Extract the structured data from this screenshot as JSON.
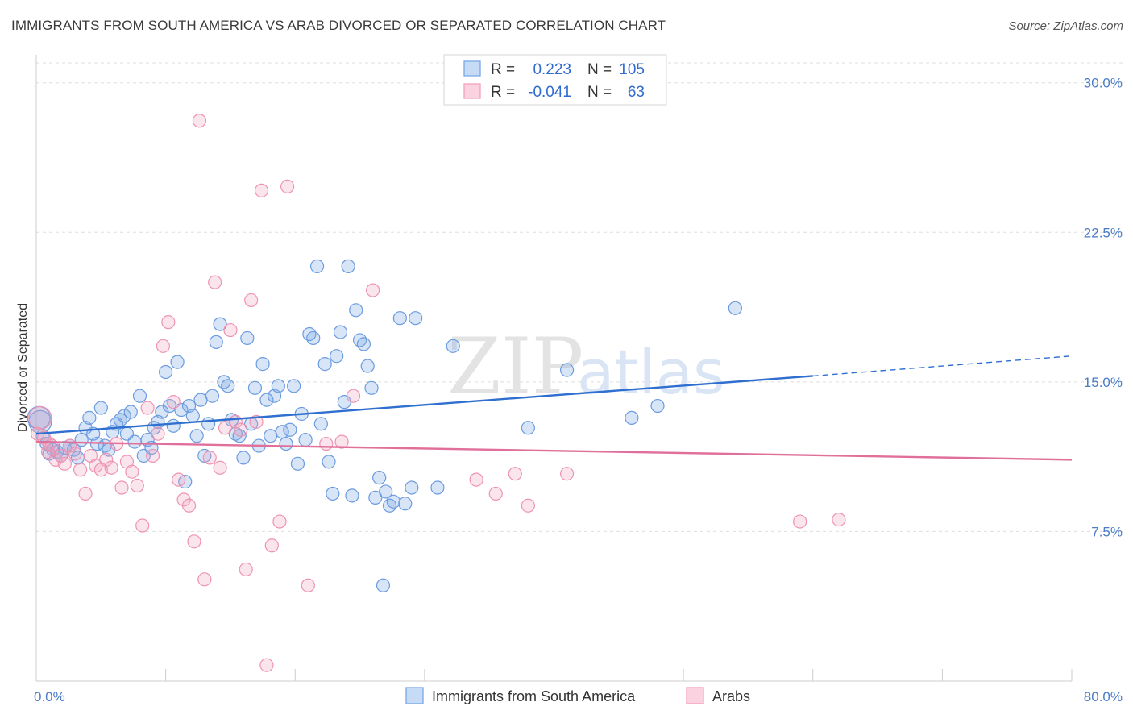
{
  "title": "IMMIGRANTS FROM SOUTH AMERICA VS ARAB DIVORCED OR SEPARATED CORRELATION CHART",
  "source": "Source: ZipAtlas.com",
  "watermark": {
    "zip": "ZIP",
    "atlas": "atlas"
  },
  "colors": {
    "blue": "#7aa8e6",
    "blue_line": "#2f6fd0",
    "pink": "#f2a0bc",
    "pink_line": "#e0709a",
    "tick": "#4a7cc7"
  },
  "legend": {
    "rows": [
      {
        "r_label": "R =",
        "r_value": "0.223",
        "n_label": "N =",
        "n_value": "105"
      },
      {
        "r_label": "R =",
        "r_value": "-0.041",
        "n_label": "N =",
        "n_value": "63"
      }
    ]
  },
  "chart_data": {
    "type": "scatter",
    "title": "IMMIGRANTS FROM SOUTH AMERICA VS ARAB DIVORCED OR SEPARATED CORRELATION CHART",
    "xlabel": "",
    "ylabel": "Divorced or Separated",
    "xlim": [
      0,
      80
    ],
    "ylim": [
      0,
      31
    ],
    "x_tick_labels": [
      "0.0%",
      "80.0%"
    ],
    "y_ticks": [
      7.5,
      15.0,
      22.5,
      30.0
    ],
    "y_tick_labels": [
      "7.5%",
      "15.0%",
      "22.5%",
      "30.0%"
    ],
    "grid": true,
    "legend_position": "top-center",
    "series": [
      {
        "name": "Immigrants from South America",
        "color": "#7aa8e6",
        "trend": {
          "x": [
            0,
            60
          ],
          "y": [
            12.4,
            15.3
          ],
          "dashed_to": [
            80,
            16.3
          ]
        },
        "points": [
          [
            0.2,
            13.2
          ],
          [
            0.5,
            12.3
          ],
          [
            0.8,
            11.9
          ],
          [
            1.0,
            11.4
          ],
          [
            1.3,
            11.6
          ],
          [
            1.6,
            11.5
          ],
          [
            1.9,
            11.3
          ],
          [
            2.2,
            11.7
          ],
          [
            2.6,
            11.8
          ],
          [
            2.9,
            11.6
          ],
          [
            3.2,
            11.2
          ],
          [
            3.5,
            12.1
          ],
          [
            3.8,
            12.7
          ],
          [
            4.1,
            13.2
          ],
          [
            4.4,
            12.4
          ],
          [
            4.7,
            11.9
          ],
          [
            5.0,
            13.7
          ],
          [
            5.3,
            11.8
          ],
          [
            5.6,
            11.6
          ],
          [
            5.9,
            12.5
          ],
          [
            6.2,
            12.9
          ],
          [
            6.5,
            13.1
          ],
          [
            6.8,
            13.3
          ],
          [
            7.0,
            12.4
          ],
          [
            7.3,
            13.5
          ],
          [
            7.6,
            12.0
          ],
          [
            8.0,
            14.3
          ],
          [
            8.3,
            11.3
          ],
          [
            8.6,
            12.1
          ],
          [
            8.9,
            11.7
          ],
          [
            9.1,
            12.7
          ],
          [
            9.4,
            13.0
          ],
          [
            9.7,
            13.5
          ],
          [
            10.0,
            15.5
          ],
          [
            10.3,
            13.8
          ],
          [
            10.6,
            12.8
          ],
          [
            10.9,
            16.0
          ],
          [
            11.2,
            13.6
          ],
          [
            11.5,
            10.0
          ],
          [
            11.8,
            13.8
          ],
          [
            12.1,
            13.3
          ],
          [
            12.4,
            12.3
          ],
          [
            12.7,
            14.1
          ],
          [
            13.0,
            11.3
          ],
          [
            13.3,
            12.9
          ],
          [
            13.6,
            14.3
          ],
          [
            13.9,
            17.0
          ],
          [
            14.2,
            17.9
          ],
          [
            14.5,
            15.0
          ],
          [
            14.8,
            14.8
          ],
          [
            15.1,
            13.1
          ],
          [
            15.4,
            12.4
          ],
          [
            15.7,
            12.3
          ],
          [
            16.0,
            11.2
          ],
          [
            16.3,
            17.2
          ],
          [
            16.6,
            12.9
          ],
          [
            16.9,
            14.7
          ],
          [
            17.2,
            11.8
          ],
          [
            17.5,
            15.9
          ],
          [
            17.8,
            14.1
          ],
          [
            18.1,
            12.3
          ],
          [
            18.4,
            14.3
          ],
          [
            18.7,
            14.8
          ],
          [
            19.0,
            12.5
          ],
          [
            19.3,
            11.9
          ],
          [
            19.6,
            12.6
          ],
          [
            19.9,
            14.8
          ],
          [
            20.2,
            10.9
          ],
          [
            20.5,
            13.4
          ],
          [
            20.8,
            12.1
          ],
          [
            21.1,
            17.4
          ],
          [
            21.4,
            17.2
          ],
          [
            21.7,
            20.8
          ],
          [
            22.0,
            12.9
          ],
          [
            22.3,
            15.9
          ],
          [
            22.6,
            11.0
          ],
          [
            22.9,
            9.4
          ],
          [
            23.2,
            16.3
          ],
          [
            23.5,
            17.5
          ],
          [
            23.8,
            14.0
          ],
          [
            24.1,
            20.8
          ],
          [
            24.4,
            9.3
          ],
          [
            24.7,
            18.6
          ],
          [
            25.0,
            17.1
          ],
          [
            25.3,
            16.9
          ],
          [
            25.6,
            15.8
          ],
          [
            25.9,
            14.7
          ],
          [
            26.2,
            9.2
          ],
          [
            26.5,
            10.2
          ],
          [
            26.8,
            4.8
          ],
          [
            27.0,
            9.5
          ],
          [
            27.3,
            8.8
          ],
          [
            27.6,
            9.0
          ],
          [
            28.1,
            18.2
          ],
          [
            28.5,
            8.9
          ],
          [
            29.0,
            9.7
          ],
          [
            29.3,
            18.2
          ],
          [
            31.0,
            9.7
          ],
          [
            32.2,
            16.8
          ],
          [
            38.0,
            12.7
          ],
          [
            41.0,
            15.6
          ],
          [
            46.0,
            13.2
          ],
          [
            48.0,
            13.8
          ],
          [
            54.0,
            18.7
          ],
          [
            0.3,
            13.0
          ]
        ]
      },
      {
        "name": "Arabs",
        "color": "#f2a0bc",
        "trend": {
          "x": [
            0,
            80
          ],
          "y": [
            12.0,
            11.1
          ]
        },
        "points": [
          [
            0.3,
            13.2
          ],
          [
            0.6,
            12.2
          ],
          [
            0.9,
            11.5
          ],
          [
            1.2,
            11.8
          ],
          [
            1.5,
            11.1
          ],
          [
            1.9,
            11.3
          ],
          [
            2.2,
            10.9
          ],
          [
            2.6,
            11.8
          ],
          [
            3.0,
            11.4
          ],
          [
            3.4,
            10.6
          ],
          [
            3.8,
            9.4
          ],
          [
            4.2,
            11.3
          ],
          [
            4.6,
            10.8
          ],
          [
            5.0,
            10.6
          ],
          [
            5.4,
            11.1
          ],
          [
            5.8,
            10.7
          ],
          [
            6.2,
            11.9
          ],
          [
            6.6,
            9.7
          ],
          [
            7.0,
            11.0
          ],
          [
            7.4,
            10.5
          ],
          [
            7.8,
            9.8
          ],
          [
            8.2,
            7.8
          ],
          [
            8.6,
            13.7
          ],
          [
            9.0,
            11.3
          ],
          [
            9.4,
            12.4
          ],
          [
            9.8,
            16.8
          ],
          [
            10.2,
            18.0
          ],
          [
            10.6,
            14.0
          ],
          [
            11.0,
            10.1
          ],
          [
            11.4,
            9.1
          ],
          [
            11.8,
            8.8
          ],
          [
            12.2,
            7.0
          ],
          [
            12.6,
            28.1
          ],
          [
            13.0,
            5.1
          ],
          [
            13.4,
            11.2
          ],
          [
            13.8,
            20.0
          ],
          [
            14.2,
            10.7
          ],
          [
            14.6,
            12.7
          ],
          [
            15.0,
            17.6
          ],
          [
            15.4,
            13.0
          ],
          [
            15.8,
            12.6
          ],
          [
            16.2,
            5.6
          ],
          [
            16.6,
            19.1
          ],
          [
            17.0,
            13.0
          ],
          [
            17.4,
            24.6
          ],
          [
            17.8,
            0.8
          ],
          [
            18.2,
            6.8
          ],
          [
            18.8,
            8.0
          ],
          [
            19.4,
            24.8
          ],
          [
            21.0,
            4.8
          ],
          [
            22.4,
            11.9
          ],
          [
            23.6,
            12.0
          ],
          [
            24.5,
            14.3
          ],
          [
            26.0,
            19.6
          ],
          [
            34.0,
            10.1
          ],
          [
            35.5,
            9.4
          ],
          [
            37.0,
            10.4
          ],
          [
            38.0,
            8.8
          ],
          [
            41.0,
            10.4
          ],
          [
            59.0,
            8.0
          ],
          [
            62.0,
            8.1
          ],
          [
            0.1,
            12.4
          ],
          [
            1.0,
            11.9
          ]
        ]
      }
    ]
  },
  "bottom_legend": [
    {
      "label": "Immigrants from South America"
    },
    {
      "label": "Arabs"
    }
  ]
}
